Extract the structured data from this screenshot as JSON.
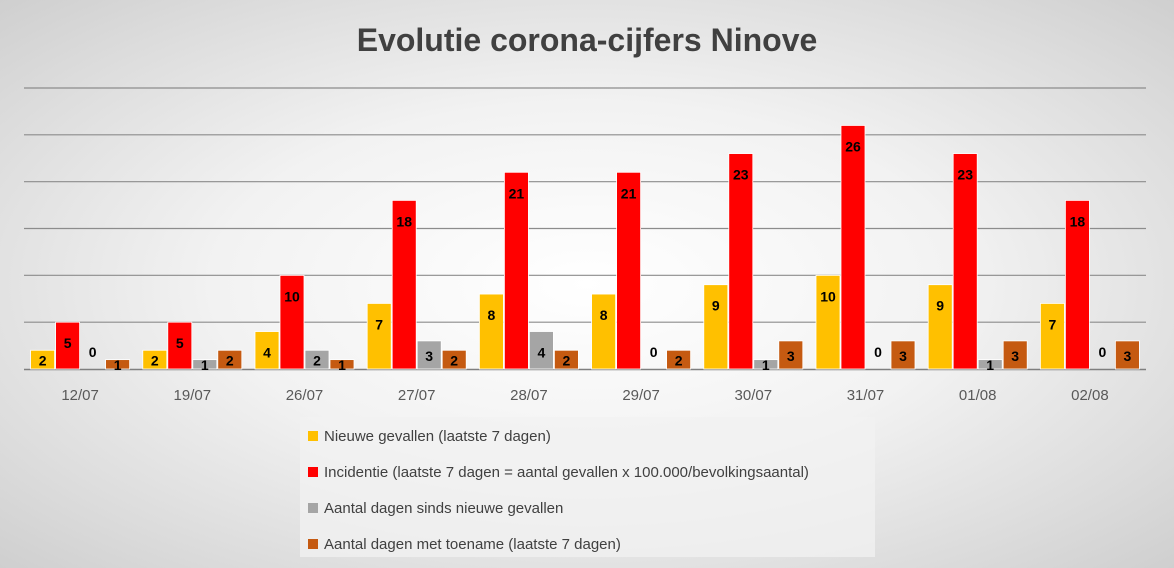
{
  "chart_data": {
    "type": "bar",
    "title": "Evolutie corona-cijfers Ninove",
    "xlabel": "",
    "ylabel": "",
    "ylim": [
      0,
      30
    ],
    "grid": true,
    "legend_position": "bottom",
    "categories": [
      "12/07",
      "19/07",
      "26/07",
      "27/07",
      "28/07",
      "29/07",
      "30/07",
      "31/07",
      "01/08",
      "02/08"
    ],
    "series": [
      {
        "name": "Nieuwe gevallen (laatste 7 dagen)",
        "color": "#FFC000",
        "values": [
          2,
          2,
          4,
          7,
          8,
          8,
          9,
          10,
          9,
          7
        ]
      },
      {
        "name": "Incidentie (laatste 7 dagen = aantal gevallen x 100.000/bevolkingsaantal)",
        "color": "#FF0000",
        "values": [
          5,
          5,
          10,
          18,
          21,
          21,
          23,
          26,
          23,
          18
        ]
      },
      {
        "name": "Aantal dagen sinds nieuwe gevallen",
        "color": "#A5A5A5",
        "values": [
          0,
          1,
          2,
          3,
          4,
          0,
          1,
          0,
          1,
          0
        ]
      },
      {
        "name": "Aantal dagen met toename (laatste 7 dagen)",
        "color": "#C55A11",
        "values": [
          1,
          2,
          1,
          2,
          2,
          2,
          3,
          3,
          3,
          3
        ]
      }
    ]
  }
}
